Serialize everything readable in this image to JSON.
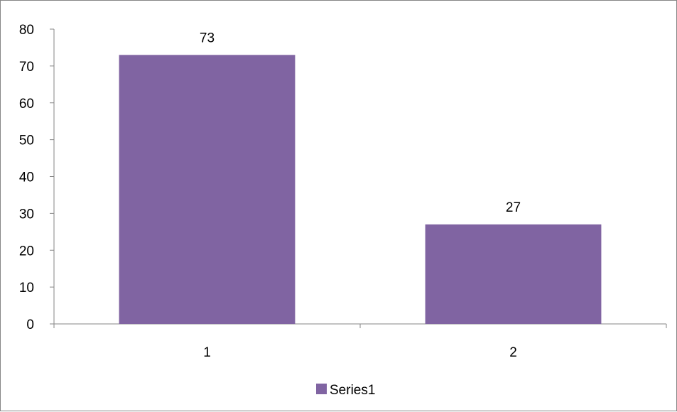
{
  "chart_data": {
    "type": "bar",
    "categories": [
      "1",
      "2"
    ],
    "series": [
      {
        "name": "Series1",
        "values": [
          73,
          27
        ],
        "color": "#8064A2"
      }
    ],
    "ylim": [
      0,
      80
    ],
    "yticks": [
      "0",
      "10",
      "20",
      "30",
      "40",
      "50",
      "60",
      "70",
      "80"
    ],
    "data_labels": [
      "73",
      "27"
    ],
    "grid": false,
    "legend_position": "bottom"
  }
}
